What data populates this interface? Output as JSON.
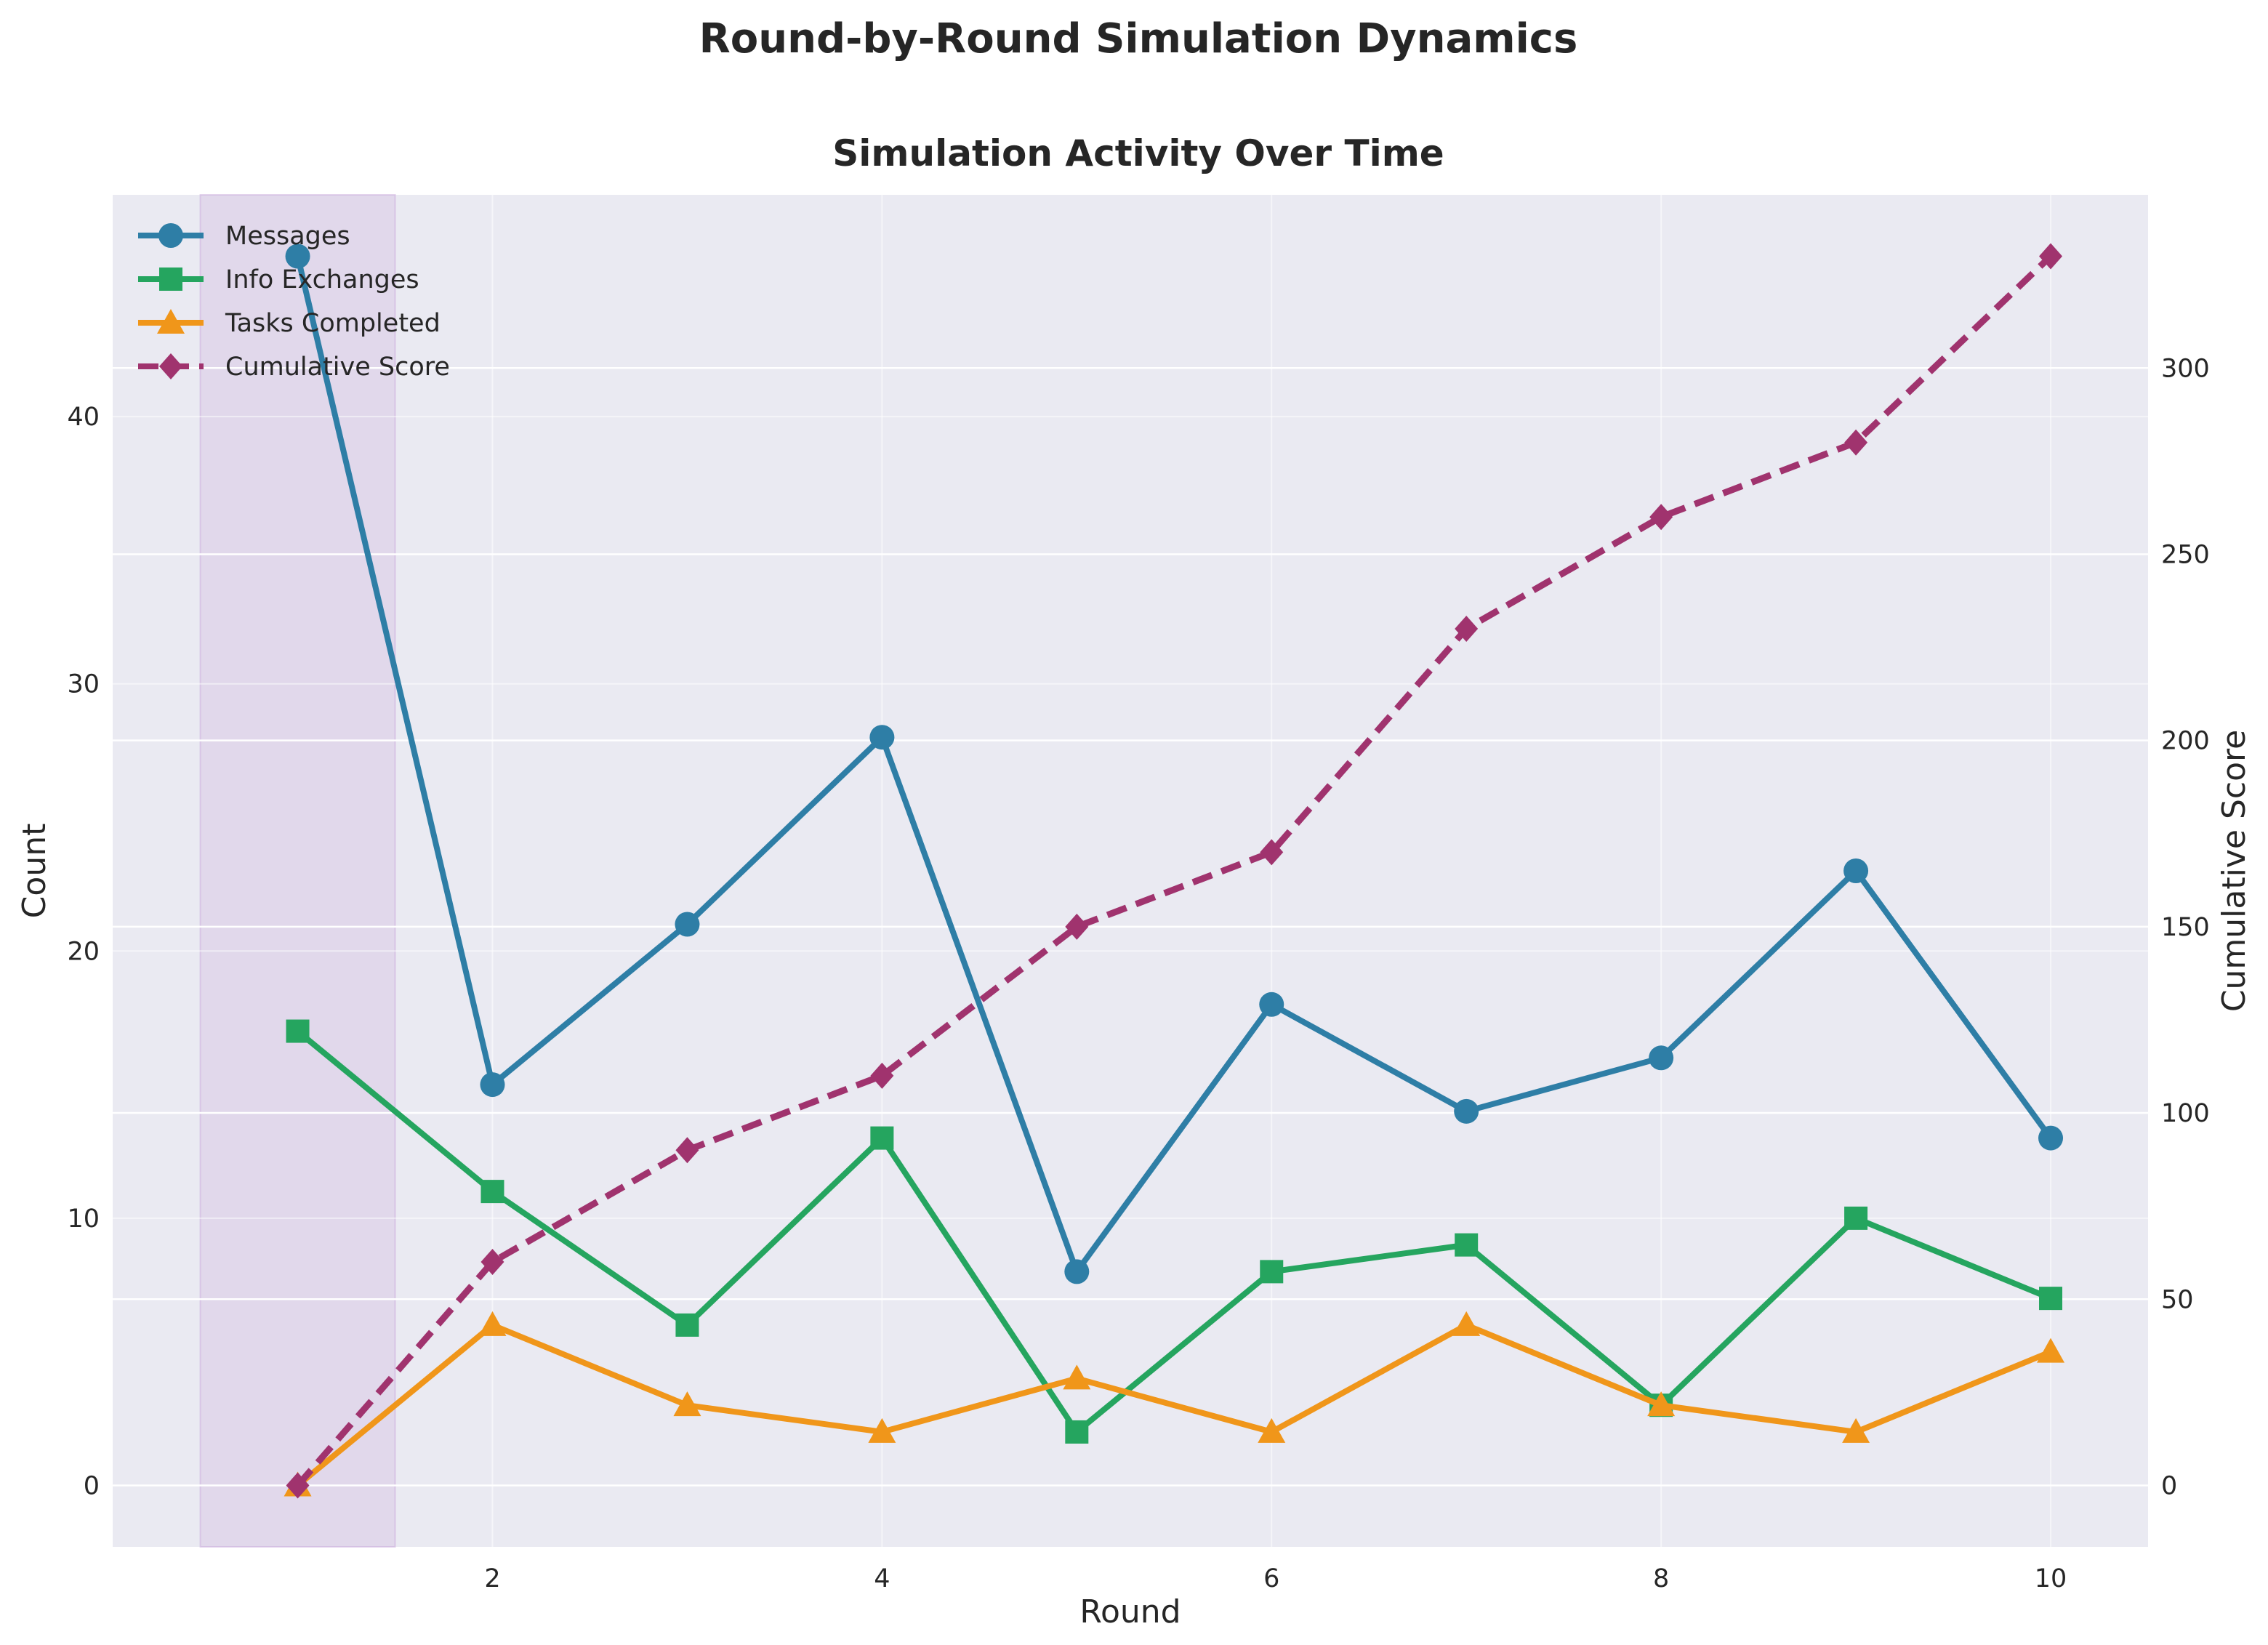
{
  "figure": {
    "suptitle": "Round-by-Round Simulation Dynamics"
  },
  "chart_data": {
    "type": "line",
    "title": "Simulation Activity Over Time",
    "xlabel": "Round",
    "ylabel": "Count",
    "y2label": "Cumulative Score",
    "x": [
      1,
      2,
      3,
      4,
      5,
      6,
      7,
      8,
      9,
      10
    ],
    "xlim": [
      0.05,
      10.5
    ],
    "ylim": [
      -2.3,
      48.3
    ],
    "y2lim": [
      -16.5,
      346.5
    ],
    "xticks": [
      2,
      4,
      6,
      8,
      10
    ],
    "yticks": [
      0,
      10,
      20,
      30,
      40
    ],
    "y2ticks": [
      0,
      50,
      100,
      150,
      200,
      250,
      300
    ],
    "grid": true,
    "legend_position": "upper-left",
    "highlight_span": {
      "x_start": 0.5,
      "x_end": 1.5,
      "color": "#c9a9dc"
    },
    "series": [
      {
        "name": "Messages",
        "axis": "left",
        "marker": "circle",
        "linestyle": "solid",
        "color": "#2e7ea6",
        "values": [
          46,
          15,
          21,
          28,
          8,
          18,
          14,
          16,
          23,
          13
        ]
      },
      {
        "name": "Info Exchanges",
        "axis": "left",
        "marker": "square",
        "linestyle": "solid",
        "color": "#25a55f",
        "values": [
          17,
          11,
          6,
          13,
          2,
          8,
          9,
          3,
          10,
          7
        ]
      },
      {
        "name": "Tasks Completed",
        "axis": "left",
        "marker": "triangle",
        "linestyle": "solid",
        "color": "#f0961a",
        "values": [
          0,
          6,
          3,
          2,
          4,
          2,
          6,
          3,
          2,
          5
        ]
      },
      {
        "name": "Cumulative Score",
        "axis": "right",
        "marker": "diamond",
        "linestyle": "dashed",
        "color": "#a0336e",
        "values": [
          0,
          60,
          90,
          110,
          150,
          170,
          230,
          260,
          280,
          330
        ]
      }
    ]
  }
}
